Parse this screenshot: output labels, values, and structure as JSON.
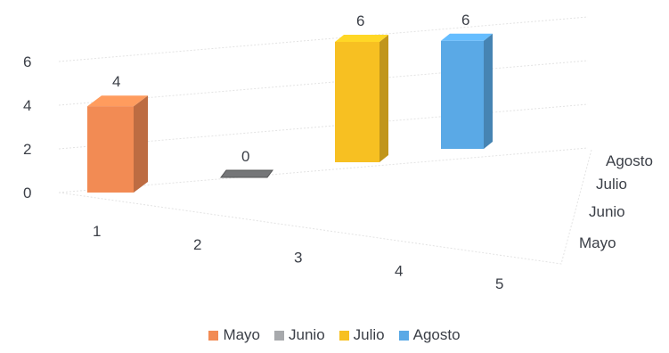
{
  "chart_data": {
    "type": "bar",
    "subtype": "3d-column",
    "title": "",
    "xlabel": "",
    "ylabel": "",
    "x_categories": [
      "1",
      "2",
      "3",
      "4",
      "5"
    ],
    "depth_categories": [
      "Agosto",
      "Julio",
      "Junio",
      "Mayo"
    ],
    "y_ticks": [
      "0",
      "2",
      "4",
      "6"
    ],
    "ylim": [
      0,
      6
    ],
    "grid": true,
    "legend_position": "bottom",
    "series": [
      {
        "name": "Mayo",
        "color": "#f28b54",
        "values": [
          4,
          null,
          null,
          null,
          null
        ]
      },
      {
        "name": "Junio",
        "color": "#a7a9ac",
        "values": [
          null,
          0,
          null,
          null,
          null
        ]
      },
      {
        "name": "Julio",
        "color": "#f7c022",
        "values": [
          null,
          null,
          null,
          6,
          null
        ]
      },
      {
        "name": "Agosto",
        "color": "#5aa9e6",
        "values": [
          null,
          null,
          null,
          null,
          6
        ]
      }
    ],
    "data_labels": [
      "4",
      "0",
      "6",
      "6"
    ]
  }
}
